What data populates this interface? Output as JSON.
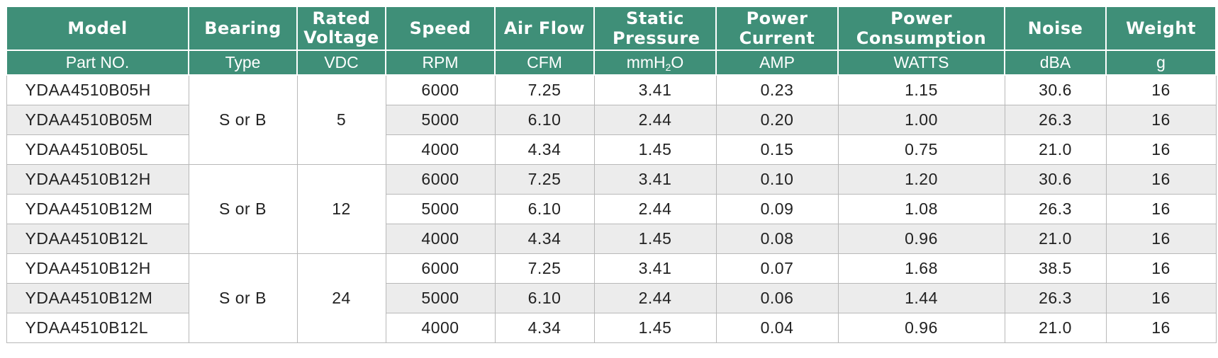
{
  "header": {
    "labels": [
      "Model",
      "Bearing",
      "Rated Voltage",
      "Speed",
      "Air Flow",
      "Static Pressure",
      "Power Current",
      "Power Consumption",
      "Noise",
      "Weight"
    ],
    "units": [
      "Part NO.",
      "Type",
      "VDC",
      "RPM",
      "CFM",
      "mmH",
      "AMP",
      "WATTS",
      "dBA",
      "g"
    ],
    "unit_pressure_sub": "2",
    "unit_pressure_tail": "O"
  },
  "colors": {
    "header_bg": "#3f8f78",
    "alt_row_bg": "#ececec"
  },
  "groups": [
    {
      "bearing": "S or B",
      "voltage": "5"
    },
    {
      "bearing": "S or B",
      "voltage": "12"
    },
    {
      "bearing": "S or B",
      "voltage": "24"
    }
  ],
  "rows": [
    {
      "model": "YDAA4510B05H",
      "speed": "6000",
      "airflow": "7.25",
      "pressure": "3.41",
      "current": "0.23",
      "power": "1.15",
      "noise": "30.6",
      "weight": "16"
    },
    {
      "model": "YDAA4510B05M",
      "speed": "5000",
      "airflow": "6.10",
      "pressure": "2.44",
      "current": "0.20",
      "power": "1.00",
      "noise": "26.3",
      "weight": "16"
    },
    {
      "model": "YDAA4510B05L",
      "speed": "4000",
      "airflow": "4.34",
      "pressure": "1.45",
      "current": "0.15",
      "power": "0.75",
      "noise": "21.0",
      "weight": "16"
    },
    {
      "model": "YDAA4510B12H",
      "speed": "6000",
      "airflow": "7.25",
      "pressure": "3.41",
      "current": "0.10",
      "power": "1.20",
      "noise": "30.6",
      "weight": "16"
    },
    {
      "model": "YDAA4510B12M",
      "speed": "5000",
      "airflow": "6.10",
      "pressure": "2.44",
      "current": "0.09",
      "power": "1.08",
      "noise": "26.3",
      "weight": "16"
    },
    {
      "model": "YDAA4510B12L",
      "speed": "4000",
      "airflow": "4.34",
      "pressure": "1.45",
      "current": "0.08",
      "power": "0.96",
      "noise": "21.0",
      "weight": "16"
    },
    {
      "model": "YDAA4510B12H",
      "speed": "6000",
      "airflow": "7.25",
      "pressure": "3.41",
      "current": "0.07",
      "power": "1.68",
      "noise": "38.5",
      "weight": "16"
    },
    {
      "model": "YDAA4510B12M",
      "speed": "5000",
      "airflow": "6.10",
      "pressure": "2.44",
      "current": "0.06",
      "power": "1.44",
      "noise": "26.3",
      "weight": "16"
    },
    {
      "model": "YDAA4510B12L",
      "speed": "4000",
      "airflow": "4.34",
      "pressure": "1.45",
      "current": "0.04",
      "power": "0.96",
      "noise": "21.0",
      "weight": "16"
    }
  ]
}
